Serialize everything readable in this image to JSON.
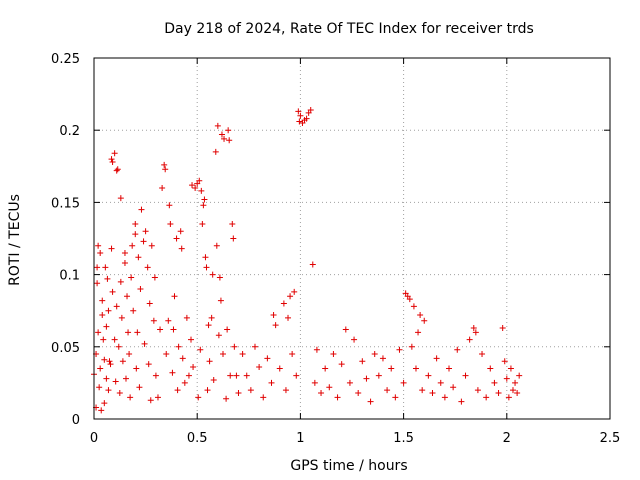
{
  "chart_data": {
    "type": "scatter",
    "title": "Day 218 of 2024, Rate Of TEC Index for receiver trds",
    "xlabel": "GPS time / hours",
    "ylabel": "ROTI / TECUs",
    "xlim": [
      0,
      2.5
    ],
    "ylim": [
      0,
      0.25
    ],
    "xticks": [
      0,
      0.5,
      1,
      1.5,
      2,
      2.5
    ],
    "xtick_labels": [
      "0",
      "0.5",
      "1",
      "1.5",
      "2",
      "2.5"
    ],
    "yticks": [
      0,
      0.05,
      0.1,
      0.15,
      0.2,
      0.25
    ],
    "ytick_labels": [
      "0",
      "0.05",
      "0.1",
      "0.15",
      "0.2",
      "0.25"
    ],
    "grid": true,
    "marker": "+",
    "color": "#e00000",
    "points": [
      [
        0.0,
        0.031
      ],
      [
        0.01,
        0.045
      ],
      [
        0.01,
        0.008
      ],
      [
        0.015,
        0.094
      ],
      [
        0.015,
        0.105
      ],
      [
        0.02,
        0.12
      ],
      [
        0.02,
        0.06
      ],
      [
        0.025,
        0.022
      ],
      [
        0.03,
        0.115
      ],
      [
        0.03,
        0.035
      ],
      [
        0.035,
        0.006
      ],
      [
        0.04,
        0.072
      ],
      [
        0.04,
        0.082
      ],
      [
        0.045,
        0.055
      ],
      [
        0.05,
        0.011
      ],
      [
        0.05,
        0.041
      ],
      [
        0.055,
        0.105
      ],
      [
        0.06,
        0.064
      ],
      [
        0.06,
        0.028
      ],
      [
        0.065,
        0.097
      ],
      [
        0.07,
        0.075
      ],
      [
        0.07,
        0.02
      ],
      [
        0.075,
        0.04
      ],
      [
        0.08,
        0.038
      ],
      [
        0.085,
        0.18
      ],
      [
        0.085,
        0.118
      ],
      [
        0.09,
        0.178
      ],
      [
        0.09,
        0.088
      ],
      [
        0.1,
        0.184
      ],
      [
        0.1,
        0.055
      ],
      [
        0.105,
        0.026
      ],
      [
        0.11,
        0.172
      ],
      [
        0.11,
        0.078
      ],
      [
        0.115,
        0.173
      ],
      [
        0.12,
        0.05
      ],
      [
        0.125,
        0.018
      ],
      [
        0.13,
        0.153
      ],
      [
        0.13,
        0.095
      ],
      [
        0.135,
        0.07
      ],
      [
        0.14,
        0.04
      ],
      [
        0.15,
        0.115
      ],
      [
        0.15,
        0.108
      ],
      [
        0.155,
        0.028
      ],
      [
        0.16,
        0.085
      ],
      [
        0.165,
        0.06
      ],
      [
        0.17,
        0.045
      ],
      [
        0.175,
        0.015
      ],
      [
        0.18,
        0.098
      ],
      [
        0.185,
        0.12
      ],
      [
        0.19,
        0.075
      ],
      [
        0.2,
        0.135
      ],
      [
        0.2,
        0.128
      ],
      [
        0.205,
        0.035
      ],
      [
        0.21,
        0.06
      ],
      [
        0.215,
        0.112
      ],
      [
        0.22,
        0.022
      ],
      [
        0.225,
        0.09
      ],
      [
        0.23,
        0.145
      ],
      [
        0.24,
        0.123
      ],
      [
        0.245,
        0.052
      ],
      [
        0.25,
        0.13
      ],
      [
        0.26,
        0.105
      ],
      [
        0.265,
        0.038
      ],
      [
        0.27,
        0.08
      ],
      [
        0.275,
        0.013
      ],
      [
        0.28,
        0.12
      ],
      [
        0.29,
        0.068
      ],
      [
        0.295,
        0.098
      ],
      [
        0.3,
        0.03
      ],
      [
        0.31,
        0.015
      ],
      [
        0.32,
        0.062
      ],
      [
        0.33,
        0.16
      ],
      [
        0.34,
        0.176
      ],
      [
        0.345,
        0.173
      ],
      [
        0.35,
        0.045
      ],
      [
        0.36,
        0.068
      ],
      [
        0.365,
        0.148
      ],
      [
        0.37,
        0.135
      ],
      [
        0.38,
        0.032
      ],
      [
        0.385,
        0.062
      ],
      [
        0.39,
        0.085
      ],
      [
        0.4,
        0.125
      ],
      [
        0.405,
        0.02
      ],
      [
        0.41,
        0.05
      ],
      [
        0.42,
        0.13
      ],
      [
        0.425,
        0.118
      ],
      [
        0.43,
        0.042
      ],
      [
        0.44,
        0.025
      ],
      [
        0.45,
        0.07
      ],
      [
        0.46,
        0.03
      ],
      [
        0.47,
        0.055
      ],
      [
        0.475,
        0.162
      ],
      [
        0.48,
        0.036
      ],
      [
        0.49,
        0.16
      ],
      [
        0.5,
        0.163
      ],
      [
        0.505,
        0.015
      ],
      [
        0.51,
        0.165
      ],
      [
        0.515,
        0.048
      ],
      [
        0.52,
        0.158
      ],
      [
        0.525,
        0.135
      ],
      [
        0.53,
        0.148
      ],
      [
        0.535,
        0.152
      ],
      [
        0.54,
        0.112
      ],
      [
        0.545,
        0.105
      ],
      [
        0.55,
        0.02
      ],
      [
        0.555,
        0.065
      ],
      [
        0.56,
        0.04
      ],
      [
        0.57,
        0.07
      ],
      [
        0.575,
        0.1
      ],
      [
        0.58,
        0.027
      ],
      [
        0.59,
        0.185
      ],
      [
        0.595,
        0.12
      ],
      [
        0.6,
        0.203
      ],
      [
        0.605,
        0.058
      ],
      [
        0.61,
        0.098
      ],
      [
        0.615,
        0.082
      ],
      [
        0.62,
        0.197
      ],
      [
        0.625,
        0.045
      ],
      [
        0.63,
        0.194
      ],
      [
        0.64,
        0.014
      ],
      [
        0.645,
        0.062
      ],
      [
        0.65,
        0.2
      ],
      [
        0.655,
        0.193
      ],
      [
        0.66,
        0.03
      ],
      [
        0.67,
        0.135
      ],
      [
        0.675,
        0.125
      ],
      [
        0.68,
        0.05
      ],
      [
        0.69,
        0.03
      ],
      [
        0.7,
        0.018
      ],
      [
        0.72,
        0.045
      ],
      [
        0.74,
        0.03
      ],
      [
        0.76,
        0.02
      ],
      [
        0.78,
        0.05
      ],
      [
        0.8,
        0.036
      ],
      [
        0.82,
        0.015
      ],
      [
        0.84,
        0.042
      ],
      [
        0.86,
        0.025
      ],
      [
        0.87,
        0.072
      ],
      [
        0.88,
        0.065
      ],
      [
        0.9,
        0.035
      ],
      [
        0.92,
        0.08
      ],
      [
        0.93,
        0.02
      ],
      [
        0.94,
        0.07
      ],
      [
        0.95,
        0.085
      ],
      [
        0.96,
        0.045
      ],
      [
        0.97,
        0.088
      ],
      [
        0.98,
        0.03
      ],
      [
        0.99,
        0.213
      ],
      [
        0.995,
        0.206
      ],
      [
        1.0,
        0.21
      ],
      [
        1.01,
        0.205
      ],
      [
        1.02,
        0.207
      ],
      [
        1.03,
        0.208
      ],
      [
        1.04,
        0.212
      ],
      [
        1.05,
        0.214
      ],
      [
        1.06,
        0.107
      ],
      [
        1.07,
        0.025
      ],
      [
        1.08,
        0.048
      ],
      [
        1.1,
        0.018
      ],
      [
        1.12,
        0.035
      ],
      [
        1.14,
        0.022
      ],
      [
        1.16,
        0.045
      ],
      [
        1.18,
        0.015
      ],
      [
        1.2,
        0.038
      ],
      [
        1.22,
        0.062
      ],
      [
        1.24,
        0.025
      ],
      [
        1.26,
        0.055
      ],
      [
        1.28,
        0.018
      ],
      [
        1.3,
        0.04
      ],
      [
        1.32,
        0.028
      ],
      [
        1.34,
        0.012
      ],
      [
        1.36,
        0.045
      ],
      [
        1.38,
        0.03
      ],
      [
        1.4,
        0.042
      ],
      [
        1.42,
        0.02
      ],
      [
        1.44,
        0.035
      ],
      [
        1.46,
        0.015
      ],
      [
        1.48,
        0.048
      ],
      [
        1.5,
        0.025
      ],
      [
        1.51,
        0.087
      ],
      [
        1.52,
        0.085
      ],
      [
        1.53,
        0.083
      ],
      [
        1.54,
        0.05
      ],
      [
        1.55,
        0.078
      ],
      [
        1.56,
        0.035
      ],
      [
        1.57,
        0.06
      ],
      [
        1.58,
        0.072
      ],
      [
        1.59,
        0.02
      ],
      [
        1.6,
        0.068
      ],
      [
        1.62,
        0.03
      ],
      [
        1.64,
        0.018
      ],
      [
        1.66,
        0.042
      ],
      [
        1.68,
        0.025
      ],
      [
        1.7,
        0.015
      ],
      [
        1.72,
        0.035
      ],
      [
        1.74,
        0.022
      ],
      [
        1.76,
        0.048
      ],
      [
        1.78,
        0.012
      ],
      [
        1.8,
        0.03
      ],
      [
        1.82,
        0.055
      ],
      [
        1.84,
        0.063
      ],
      [
        1.85,
        0.06
      ],
      [
        1.86,
        0.02
      ],
      [
        1.88,
        0.045
      ],
      [
        1.9,
        0.015
      ],
      [
        1.92,
        0.035
      ],
      [
        1.94,
        0.025
      ],
      [
        1.96,
        0.018
      ],
      [
        1.98,
        0.063
      ],
      [
        1.99,
        0.04
      ],
      [
        2.0,
        0.028
      ],
      [
        2.01,
        0.015
      ],
      [
        2.02,
        0.035
      ],
      [
        2.03,
        0.02
      ],
      [
        2.04,
        0.025
      ],
      [
        2.05,
        0.018
      ],
      [
        2.06,
        0.03
      ]
    ]
  }
}
